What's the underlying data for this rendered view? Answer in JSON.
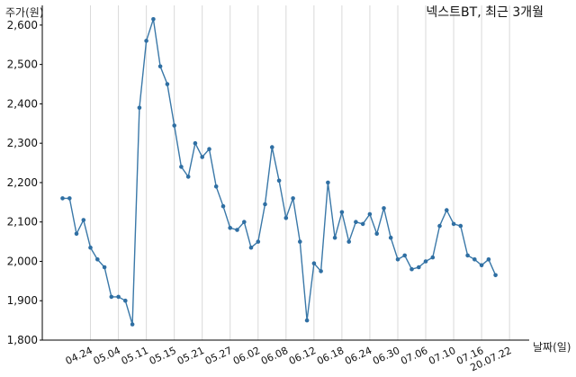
{
  "chart_data": {
    "type": "line",
    "title": "넥스트BT, 최근 3개월",
    "ylabel": "주가(원)",
    "xlabel": "날짜(일)",
    "ylim": [
      1800,
      2650
    ],
    "yticks": [
      1800,
      1900,
      2000,
      2100,
      2200,
      2300,
      2400,
      2500,
      2600
    ],
    "ytick_labels": [
      "1,800",
      "1,900",
      "2,000",
      "2,100",
      "2,200",
      "2,300",
      "2,400",
      "2,500",
      "2,600"
    ],
    "grid": "vertical",
    "xtick_labels": [
      "04.24",
      "05.04",
      "05.11",
      "05.15",
      "05.21",
      "05.27",
      "06.02",
      "06.08",
      "06.12",
      "06.18",
      "06.24",
      "06.30",
      "07.06",
      "07.10",
      "07.16",
      "20.07.22"
    ],
    "xtick_positions": [
      4,
      8,
      12,
      16,
      20,
      24,
      28,
      32,
      36,
      40,
      44,
      48,
      52,
      56,
      60,
      64
    ],
    "series": [
      {
        "values": [
          2160,
          2160,
          2070,
          2105,
          2035,
          2005,
          1985,
          1910,
          1910,
          1900,
          1840,
          2390,
          2560,
          2615,
          2495,
          2450,
          2345,
          2240,
          2215,
          2300,
          2265,
          2285,
          2190,
          2140,
          2085,
          2080,
          2100,
          2035,
          2050,
          2145,
          2290,
          2205,
          2110,
          2160,
          2050,
          1850,
          1995,
          1975,
          2200,
          2060,
          2125,
          2050,
          2100,
          2095,
          2120,
          2070,
          2135,
          2060,
          2005,
          2015,
          1980,
          1985,
          2000,
          2010,
          2090,
          2130,
          2095,
          2090,
          2015,
          2005,
          1990,
          2005,
          1965
        ]
      }
    ]
  }
}
